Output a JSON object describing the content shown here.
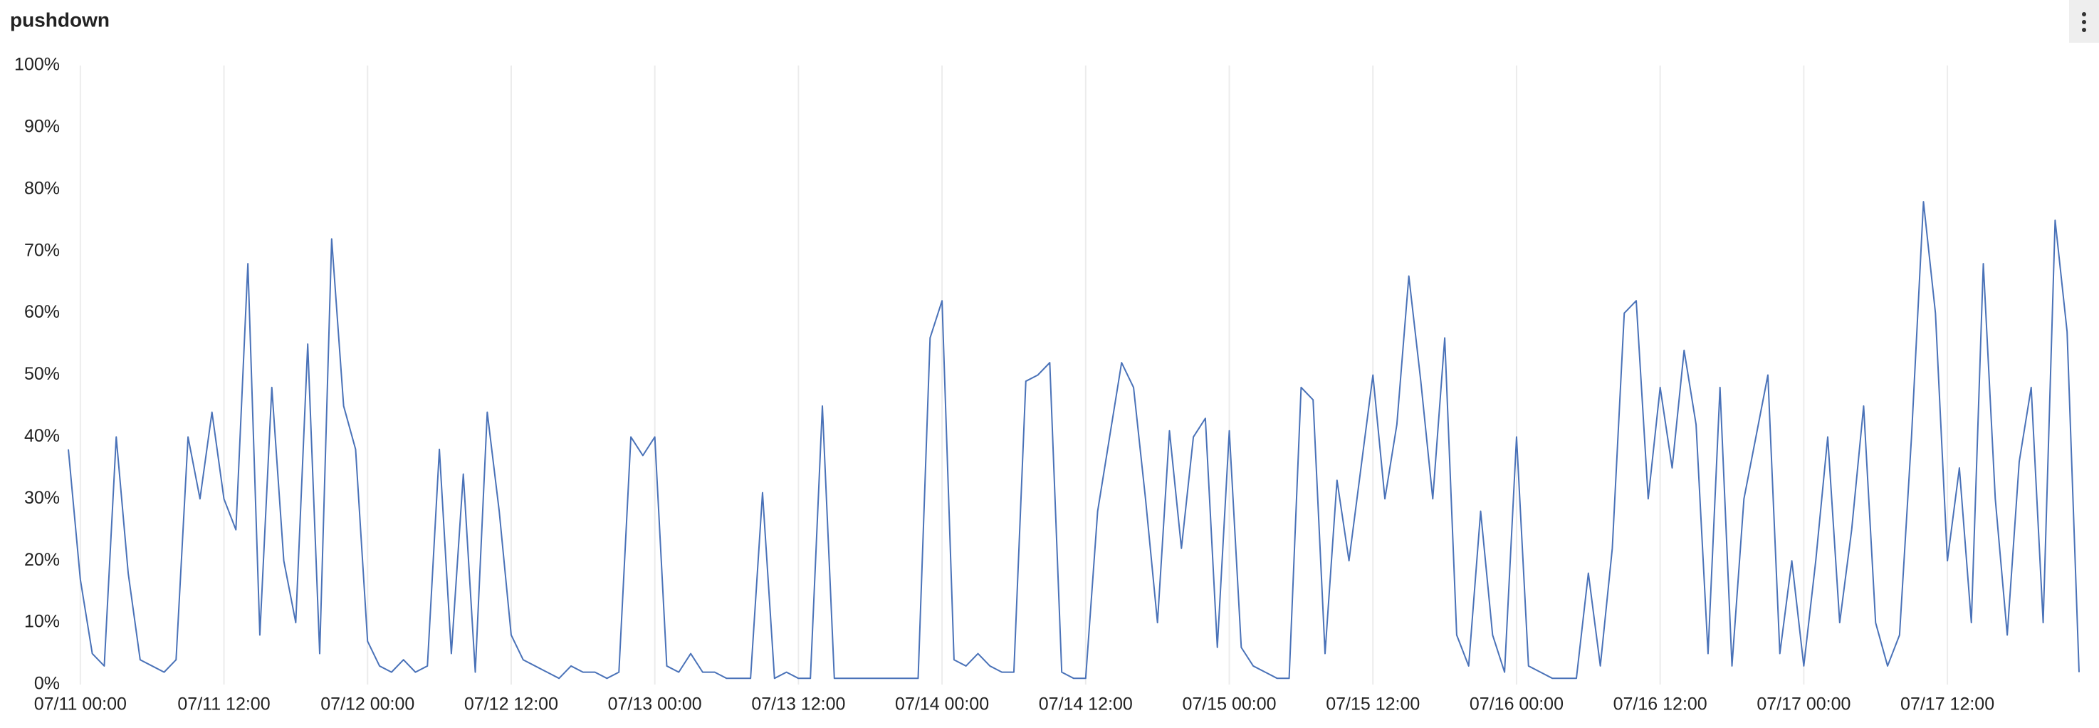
{
  "chart_data": {
    "type": "line",
    "title": "pushdown",
    "x": [
      "07/10 23:00",
      "07/11 00:00",
      "07/11 01:00",
      "07/11 02:00",
      "07/11 03:00",
      "07/11 04:00",
      "07/11 05:00",
      "07/11 06:00",
      "07/11 07:00",
      "07/11 08:00",
      "07/11 09:00",
      "07/11 10:00",
      "07/11 11:00",
      "07/11 12:00",
      "07/11 13:00",
      "07/11 14:00",
      "07/11 15:00",
      "07/11 16:00",
      "07/11 17:00",
      "07/11 18:00",
      "07/11 19:00",
      "07/11 20:00",
      "07/11 21:00",
      "07/11 22:00",
      "07/11 23:00",
      "07/12 00:00",
      "07/12 01:00",
      "07/12 02:00",
      "07/12 03:00",
      "07/12 04:00",
      "07/12 05:00",
      "07/12 06:00",
      "07/12 07:00",
      "07/12 08:00",
      "07/12 09:00",
      "07/12 10:00",
      "07/12 11:00",
      "07/12 12:00",
      "07/12 13:00",
      "07/12 14:00",
      "07/12 15:00",
      "07/12 16:00",
      "07/12 17:00",
      "07/12 18:00",
      "07/12 19:00",
      "07/12 20:00",
      "07/12 21:00",
      "07/12 22:00",
      "07/12 23:00",
      "07/13 00:00",
      "07/13 01:00",
      "07/13 02:00",
      "07/13 03:00",
      "07/13 04:00",
      "07/13 05:00",
      "07/13 06:00",
      "07/13 07:00",
      "07/13 08:00",
      "07/13 09:00",
      "07/13 10:00",
      "07/13 11:00",
      "07/13 12:00",
      "07/13 13:00",
      "07/13 14:00",
      "07/13 15:00",
      "07/13 16:00",
      "07/13 17:00",
      "07/13 18:00",
      "07/13 19:00",
      "07/13 20:00",
      "07/13 21:00",
      "07/13 22:00",
      "07/13 23:00",
      "07/14 00:00",
      "07/14 01:00",
      "07/14 02:00",
      "07/14 03:00",
      "07/14 04:00",
      "07/14 05:00",
      "07/14 06:00",
      "07/14 07:00",
      "07/14 08:00",
      "07/14 09:00",
      "07/14 10:00",
      "07/14 11:00",
      "07/14 12:00",
      "07/14 13:00",
      "07/14 14:00",
      "07/14 15:00",
      "07/14 16:00",
      "07/14 17:00",
      "07/14 18:00",
      "07/14 19:00",
      "07/14 20:00",
      "07/14 21:00",
      "07/14 22:00",
      "07/14 23:00",
      "07/15 00:00",
      "07/15 01:00",
      "07/15 02:00",
      "07/15 03:00",
      "07/15 04:00",
      "07/15 05:00",
      "07/15 06:00",
      "07/15 07:00",
      "07/15 08:00",
      "07/15 09:00",
      "07/15 10:00",
      "07/15 11:00",
      "07/15 12:00",
      "07/15 13:00",
      "07/15 14:00",
      "07/15 15:00",
      "07/15 16:00",
      "07/15 17:00",
      "07/15 18:00",
      "07/15 19:00",
      "07/15 20:00",
      "07/15 21:00",
      "07/15 22:00",
      "07/15 23:00",
      "07/16 00:00",
      "07/16 01:00",
      "07/16 02:00",
      "07/16 03:00",
      "07/16 04:00",
      "07/16 05:00",
      "07/16 06:00",
      "07/16 07:00",
      "07/16 08:00",
      "07/16 09:00",
      "07/16 10:00",
      "07/16 11:00",
      "07/16 12:00",
      "07/16 13:00",
      "07/16 14:00",
      "07/16 15:00",
      "07/16 16:00",
      "07/16 17:00",
      "07/16 18:00",
      "07/16 19:00",
      "07/16 20:00",
      "07/16 21:00",
      "07/16 22:00",
      "07/16 23:00",
      "07/17 00:00",
      "07/17 01:00",
      "07/17 02:00",
      "07/17 03:00",
      "07/17 04:00",
      "07/17 05:00",
      "07/17 06:00",
      "07/17 07:00",
      "07/17 08:00",
      "07/17 09:00",
      "07/17 10:00",
      "07/17 11:00",
      "07/17 12:00",
      "07/17 13:00",
      "07/17 14:00",
      "07/17 15:00",
      "07/17 16:00",
      "07/17 17:00",
      "07/17 18:00",
      "07/17 19:00",
      "07/17 20:00",
      "07/17 21:00",
      "07/17 22:00",
      "07/17 23:00"
    ],
    "values": [
      38,
      17,
      5,
      3,
      40,
      18,
      4,
      3,
      2,
      4,
      40,
      30,
      44,
      30,
      25,
      68,
      8,
      48,
      20,
      10,
      55,
      5,
      72,
      45,
      38,
      7,
      3,
      2,
      4,
      2,
      3,
      38,
      5,
      34,
      2,
      44,
      28,
      8,
      4,
      3,
      2,
      1,
      3,
      2,
      2,
      1,
      2,
      40,
      37,
      40,
      3,
      2,
      5,
      2,
      2,
      1,
      1,
      1,
      31,
      1,
      2,
      1,
      1,
      45,
      1,
      1,
      1,
      1,
      1,
      1,
      1,
      1,
      56,
      62,
      4,
      3,
      5,
      3,
      2,
      2,
      49,
      50,
      52,
      2,
      1,
      1,
      28,
      40,
      52,
      48,
      30,
      10,
      41,
      22,
      40,
      43,
      6,
      41,
      6,
      3,
      2,
      1,
      1,
      48,
      46,
      5,
      33,
      20,
      35,
      50,
      30,
      42,
      66,
      49,
      30,
      56,
      8,
      3,
      28,
      8,
      2,
      40,
      3,
      2,
      1,
      1,
      1,
      18,
      3,
      22,
      60,
      62,
      30,
      48,
      35,
      54,
      42,
      5,
      48,
      3,
      30,
      40,
      50,
      5,
      20,
      3,
      20,
      40,
      10,
      25,
      45,
      10,
      3,
      8,
      40,
      78,
      60,
      20,
      35,
      10,
      68,
      30,
      8,
      36,
      48,
      10,
      75,
      57,
      2
    ],
    "color": "#4a72b8",
    "xlim": [
      "07/10 23:00",
      "07/17 23:00"
    ],
    "xticks": [
      "07/11 00:00",
      "07/11 12:00",
      "07/12 00:00",
      "07/12 12:00",
      "07/13 00:00",
      "07/13 12:00",
      "07/14 00:00",
      "07/14 12:00",
      "07/15 00:00",
      "07/15 12:00",
      "07/16 00:00",
      "07/16 12:00",
      "07/17 00:00",
      "07/17 12:00"
    ],
    "ylim": [
      0,
      100
    ],
    "yticks": [
      {
        "value": 0,
        "label": "0%"
      },
      {
        "value": 10,
        "label": "10%"
      },
      {
        "value": 20,
        "label": "20%"
      },
      {
        "value": 30,
        "label": "30%"
      },
      {
        "value": 40,
        "label": "40%"
      },
      {
        "value": 50,
        "label": "50%"
      },
      {
        "value": 60,
        "label": "60%"
      },
      {
        "value": 70,
        "label": "70%"
      },
      {
        "value": 80,
        "label": "80%"
      },
      {
        "value": 90,
        "label": "90%"
      },
      {
        "value": 100,
        "label": "100%"
      }
    ],
    "grid": true
  }
}
